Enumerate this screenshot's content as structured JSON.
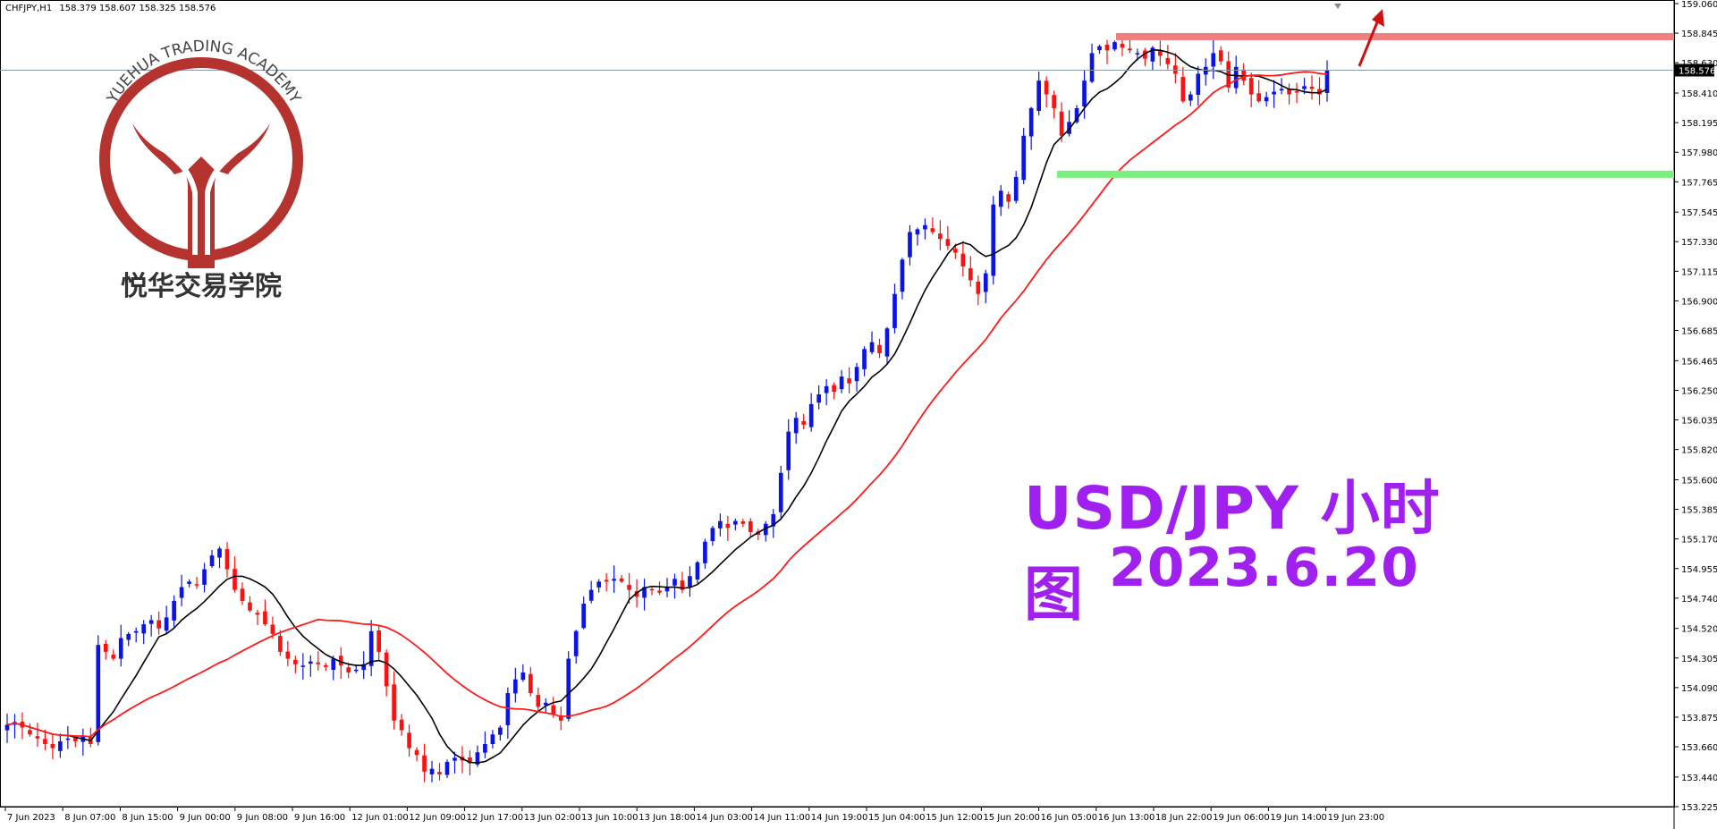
{
  "header": {
    "symbol": "CHFJPY,H1",
    "ohlc": "158.379 158.607 158.325 158.576"
  },
  "overlay": {
    "title": "USD/JPY 小时图",
    "date": "2023.6.20"
  },
  "logo": {
    "arc_text": "YUEHUA TRADING ACADEMY",
    "chinese_text": "悦华交易学院",
    "colors": {
      "ring": "#b5332e"
    }
  },
  "colors": {
    "bull": "#0a14e6",
    "bear": "#ff1010",
    "ma_fast": "#000000",
    "ma_slow": "#ff1a1a",
    "resistance": "#f08080",
    "support": "#7cf07c",
    "arrow": "#cc1111",
    "overlay_text": "#a020f0"
  },
  "chart_data": {
    "type": "candlestick",
    "title": "",
    "current_price": "158.576",
    "y_ticks": [
      "159.060",
      "158.845",
      "158.630",
      "158.410",
      "158.195",
      "157.980",
      "157.765",
      "157.545",
      "157.330",
      "157.115",
      "156.900",
      "156.685",
      "156.465",
      "156.250",
      "156.035",
      "155.820",
      "155.600",
      "155.385",
      "155.170",
      "154.955",
      "154.740",
      "154.520",
      "154.305",
      "154.090",
      "153.875",
      "153.660",
      "153.440",
      "153.225"
    ],
    "ylim": [
      153.225,
      159.06
    ],
    "x_ticks": [
      "7 Jun 2023",
      "8 Jun 07:00",
      "8 Jun 15:00",
      "9 Jun 00:00",
      "9 Jun 08:00",
      "9 Jun 16:00",
      "12 Jun 01:00",
      "12 Jun 09:00",
      "12 Jun 17:00",
      "13 Jun 02:00",
      "13 Jun 10:00",
      "13 Jun 18:00",
      "14 Jun 03:00",
      "14 Jun 11:00",
      "14 Jun 19:00",
      "15 Jun 04:00",
      "15 Jun 12:00",
      "15 Jun 20:00",
      "16 Jun 05:00",
      "16 Jun 13:00",
      "18 Jun 22:00",
      "19 Jun 06:00",
      "19 Jun 14:00",
      "19 Jun 23:00"
    ],
    "closes": [
      153.82,
      153.84,
      153.8,
      153.75,
      153.72,
      153.68,
      153.65,
      153.7,
      153.72,
      153.7,
      153.74,
      153.68,
      154.4,
      154.35,
      154.3,
      154.45,
      154.48,
      154.5,
      154.55,
      154.58,
      154.52,
      154.6,
      154.72,
      154.82,
      154.86,
      154.84,
      154.95,
      155.05,
      155.1,
      154.95,
      154.8,
      154.72,
      154.65,
      154.62,
      154.55,
      154.48,
      154.35,
      154.3,
      154.26,
      154.25,
      154.28,
      154.26,
      154.24,
      154.3,
      154.25,
      154.2,
      154.22,
      154.26,
      154.5,
      154.35,
      154.1,
      153.85,
      153.78,
      153.65,
      153.6,
      153.48,
      153.5,
      153.46,
      153.55,
      153.58,
      153.56,
      153.54,
      153.62,
      153.68,
      153.75,
      153.8,
      154.05,
      154.15,
      154.2,
      154.05,
      153.95,
      153.98,
      153.9,
      153.85,
      154.3,
      154.5,
      154.7,
      154.8,
      154.86,
      154.86,
      154.88,
      154.86,
      154.8,
      154.75,
      154.82,
      154.8,
      154.78,
      154.82,
      154.88,
      154.8,
      154.9,
      155.0,
      155.15,
      155.25,
      155.3,
      155.25,
      155.3,
      155.28,
      155.22,
      155.2,
      155.28,
      155.35,
      155.65,
      155.95,
      156.05,
      156.0,
      156.15,
      156.22,
      156.28,
      156.24,
      156.35,
      156.3,
      156.42,
      156.55,
      156.6,
      156.52,
      156.7,
      156.95,
      157.2,
      157.4,
      157.42,
      157.45,
      157.4,
      157.35,
      157.3,
      157.25,
      157.15,
      157.05,
      156.95,
      157.1,
      157.6,
      157.7,
      157.62,
      157.8,
      158.1,
      158.3,
      158.5,
      158.4,
      158.3,
      158.1,
      158.2,
      158.3,
      158.5,
      158.7,
      158.75,
      158.72,
      158.78,
      158.74,
      158.72,
      158.7,
      158.66,
      158.74,
      158.68,
      158.62,
      158.55,
      158.35,
      158.4,
      158.55,
      158.6,
      158.7,
      158.64,
      158.45,
      158.6,
      158.5,
      158.4,
      158.35,
      158.38,
      158.42,
      158.44,
      158.4,
      158.42,
      158.46,
      158.44,
      158.4,
      158.576
    ],
    "ma_fast_label": "",
    "ma_slow_label": "",
    "resistance_level": 158.82,
    "support_level": 157.82
  }
}
